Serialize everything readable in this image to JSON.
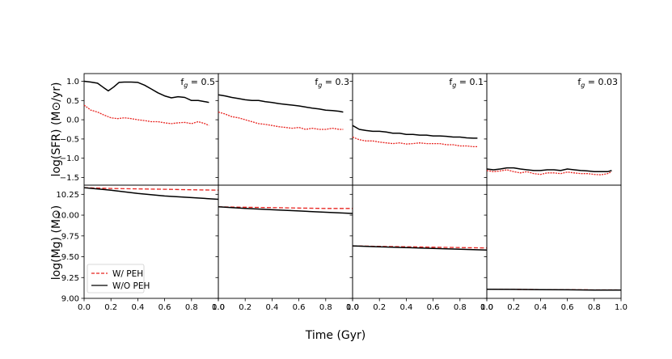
{
  "chart_data": {
    "type": "line",
    "xlabel": "Time (Gyr)",
    "xlim": [
      0.0,
      1.0
    ],
    "x_ticks": [
      "0.0",
      "0.2",
      "0.4",
      "0.6",
      "0.8",
      "1.0"
    ],
    "colors": {
      "w_peh": "#e8231f",
      "wo_peh": "#000000"
    },
    "legend": {
      "placement": "lower-left (bottom row, first panel)",
      "entries": [
        {
          "label": "W/ PEH",
          "color": "#e8231f",
          "style": "dashed"
        },
        {
          "label": "W/O PEH",
          "color": "#000000",
          "style": "solid"
        }
      ]
    },
    "rows": [
      {
        "ylabel": "log(SFR) (M⊙/yr)",
        "ylim": [
          -1.7,
          1.2
        ],
        "y_ticks": [
          {
            "value": 1.0,
            "label": "1.0"
          },
          {
            "value": 0.5,
            "label": "0.5"
          },
          {
            "value": 0.0,
            "label": "0.0"
          },
          {
            "value": -0.5,
            "label": "−0.5"
          },
          {
            "value": -1.0,
            "label": "−1.0"
          },
          {
            "value": -1.5,
            "label": "−1.5"
          }
        ]
      },
      {
        "ylabel": "log(Mg) (M⊙)",
        "ylim": [
          9.0,
          10.36
        ],
        "y_ticks": [
          {
            "value": 10.25,
            "label": "10.25"
          },
          {
            "value": 10.0,
            "label": "10.00"
          },
          {
            "value": 9.75,
            "label": "9.75"
          },
          {
            "value": 9.5,
            "label": "9.50"
          },
          {
            "value": 9.25,
            "label": "9.25"
          },
          {
            "value": 9.0,
            "label": "9.00"
          }
        ]
      }
    ],
    "panels": [
      {
        "annotation": {
          "main": "f",
          "sub": "g",
          "rest": " = 0.5"
        },
        "sfr": {
          "wo_peh": {
            "x": [
              0.0,
              0.05,
              0.1,
              0.14,
              0.18,
              0.22,
              0.26,
              0.3,
              0.35,
              0.4,
              0.45,
              0.5,
              0.55,
              0.6,
              0.65,
              0.7,
              0.75,
              0.8,
              0.85,
              0.9,
              0.93
            ],
            "y": [
              1.0,
              0.98,
              0.95,
              0.85,
              0.75,
              0.85,
              0.97,
              0.98,
              0.98,
              0.97,
              0.9,
              0.8,
              0.7,
              0.62,
              0.57,
              0.6,
              0.58,
              0.5,
              0.5,
              0.47,
              0.45
            ]
          },
          "w_peh": {
            "x": [
              0.0,
              0.05,
              0.1,
              0.15,
              0.2,
              0.25,
              0.3,
              0.35,
              0.4,
              0.45,
              0.5,
              0.55,
              0.6,
              0.65,
              0.7,
              0.75,
              0.8,
              0.85,
              0.9,
              0.93
            ],
            "y": [
              0.38,
              0.25,
              0.2,
              0.12,
              0.05,
              0.03,
              0.05,
              0.03,
              0.0,
              -0.02,
              -0.05,
              -0.05,
              -0.08,
              -0.1,
              -0.08,
              -0.07,
              -0.1,
              -0.05,
              -0.1,
              -0.15
            ]
          }
        },
        "mg": {
          "wo_peh": {
            "x": [
              0.0,
              0.2,
              0.4,
              0.6,
              0.8,
              1.0
            ],
            "y": [
              10.33,
              10.3,
              10.26,
              10.23,
              10.21,
              10.19
            ]
          },
          "w_peh": {
            "x": [
              0.0,
              0.2,
              0.4,
              0.6,
              0.8,
              1.0
            ],
            "y": [
              10.33,
              10.32,
              10.315,
              10.31,
              10.305,
              10.3
            ]
          }
        }
      },
      {
        "annotation": {
          "main": "f",
          "sub": "g",
          "rest": " = 0.3"
        },
        "sfr": {
          "wo_peh": {
            "x": [
              0.0,
              0.05,
              0.1,
              0.15,
              0.2,
              0.25,
              0.3,
              0.35,
              0.4,
              0.45,
              0.5,
              0.55,
              0.6,
              0.65,
              0.7,
              0.75,
              0.8,
              0.85,
              0.9,
              0.93
            ],
            "y": [
              0.65,
              0.62,
              0.58,
              0.55,
              0.52,
              0.5,
              0.5,
              0.47,
              0.45,
              0.42,
              0.4,
              0.38,
              0.36,
              0.33,
              0.3,
              0.28,
              0.25,
              0.24,
              0.22,
              0.2
            ]
          },
          "w_peh": {
            "x": [
              0.0,
              0.05,
              0.1,
              0.15,
              0.2,
              0.25,
              0.3,
              0.35,
              0.4,
              0.45,
              0.5,
              0.55,
              0.6,
              0.65,
              0.7,
              0.75,
              0.8,
              0.85,
              0.9,
              0.93
            ],
            "y": [
              0.2,
              0.15,
              0.08,
              0.05,
              0.0,
              -0.05,
              -0.1,
              -0.12,
              -0.15,
              -0.18,
              -0.2,
              -0.22,
              -0.2,
              -0.25,
              -0.22,
              -0.25,
              -0.25,
              -0.22,
              -0.25,
              -0.25
            ]
          }
        },
        "mg": {
          "wo_peh": {
            "x": [
              0.0,
              0.2,
              0.4,
              0.6,
              0.8,
              1.0
            ],
            "y": [
              10.1,
              10.08,
              10.065,
              10.05,
              10.035,
              10.02
            ]
          },
          "w_peh": {
            "x": [
              0.0,
              0.2,
              0.4,
              0.6,
              0.8,
              1.0
            ],
            "y": [
              10.1,
              10.095,
              10.09,
              10.085,
              10.08,
              10.08
            ]
          }
        }
      },
      {
        "annotation": {
          "main": "f",
          "sub": "g",
          "rest": " = 0.1"
        },
        "sfr": {
          "wo_peh": {
            "x": [
              0.0,
              0.05,
              0.1,
              0.15,
              0.2,
              0.25,
              0.3,
              0.35,
              0.4,
              0.45,
              0.5,
              0.55,
              0.6,
              0.65,
              0.7,
              0.75,
              0.8,
              0.85,
              0.9,
              0.93
            ],
            "y": [
              -0.15,
              -0.25,
              -0.28,
              -0.3,
              -0.3,
              -0.32,
              -0.35,
              -0.35,
              -0.38,
              -0.38,
              -0.4,
              -0.4,
              -0.42,
              -0.42,
              -0.43,
              -0.45,
              -0.45,
              -0.47,
              -0.48,
              -0.48
            ]
          },
          "w_peh": {
            "x": [
              0.0,
              0.05,
              0.1,
              0.15,
              0.2,
              0.25,
              0.3,
              0.35,
              0.4,
              0.45,
              0.5,
              0.55,
              0.6,
              0.65,
              0.7,
              0.75,
              0.8,
              0.85,
              0.9,
              0.93
            ],
            "y": [
              -0.45,
              -0.52,
              -0.55,
              -0.55,
              -0.58,
              -0.6,
              -0.62,
              -0.6,
              -0.63,
              -0.62,
              -0.6,
              -0.62,
              -0.62,
              -0.62,
              -0.65,
              -0.65,
              -0.68,
              -0.68,
              -0.7,
              -0.7
            ]
          }
        },
        "mg": {
          "wo_peh": {
            "x": [
              0.0,
              0.2,
              0.4,
              0.6,
              0.8,
              1.0
            ],
            "y": [
              9.63,
              9.62,
              9.61,
              9.6,
              9.59,
              9.58
            ]
          },
          "w_peh": {
            "x": [
              0.0,
              0.2,
              0.4,
              0.6,
              0.8,
              1.0
            ],
            "y": [
              9.63,
              9.625,
              9.62,
              9.615,
              9.61,
              9.605
            ]
          }
        }
      },
      {
        "annotation": {
          "main": "f",
          "sub": "g",
          "rest": " = 0.03"
        },
        "sfr": {
          "wo_peh": {
            "x": [
              0.0,
              0.05,
              0.1,
              0.15,
              0.2,
              0.25,
              0.3,
              0.35,
              0.4,
              0.45,
              0.5,
              0.55,
              0.6,
              0.65,
              0.7,
              0.75,
              0.8,
              0.85,
              0.9,
              0.93
            ],
            "y": [
              -1.28,
              -1.3,
              -1.28,
              -1.25,
              -1.25,
              -1.28,
              -1.3,
              -1.32,
              -1.32,
              -1.3,
              -1.3,
              -1.32,
              -1.28,
              -1.3,
              -1.32,
              -1.33,
              -1.35,
              -1.35,
              -1.35,
              -1.32
            ]
          },
          "w_peh": {
            "x": [
              0.0,
              0.05,
              0.1,
              0.15,
              0.2,
              0.25,
              0.3,
              0.35,
              0.4,
              0.45,
              0.5,
              0.55,
              0.6,
              0.65,
              0.7,
              0.75,
              0.8,
              0.85,
              0.9,
              0.93
            ],
            "y": [
              -1.32,
              -1.35,
              -1.33,
              -1.3,
              -1.35,
              -1.38,
              -1.35,
              -1.4,
              -1.42,
              -1.38,
              -1.38,
              -1.4,
              -1.36,
              -1.38,
              -1.4,
              -1.4,
              -1.42,
              -1.43,
              -1.4,
              -1.35
            ]
          }
        },
        "mg": {
          "wo_peh": {
            "x": [
              0.0,
              0.2,
              0.4,
              0.6,
              0.8,
              1.0
            ],
            "y": [
              9.11,
              9.108,
              9.105,
              9.103,
              9.1,
              9.1
            ]
          },
          "w_peh": {
            "x": [
              0.0,
              0.2,
              0.4,
              0.6,
              0.8,
              1.0
            ],
            "y": [
              9.11,
              9.108,
              9.106,
              9.104,
              9.102,
              9.101
            ]
          }
        }
      }
    ]
  }
}
